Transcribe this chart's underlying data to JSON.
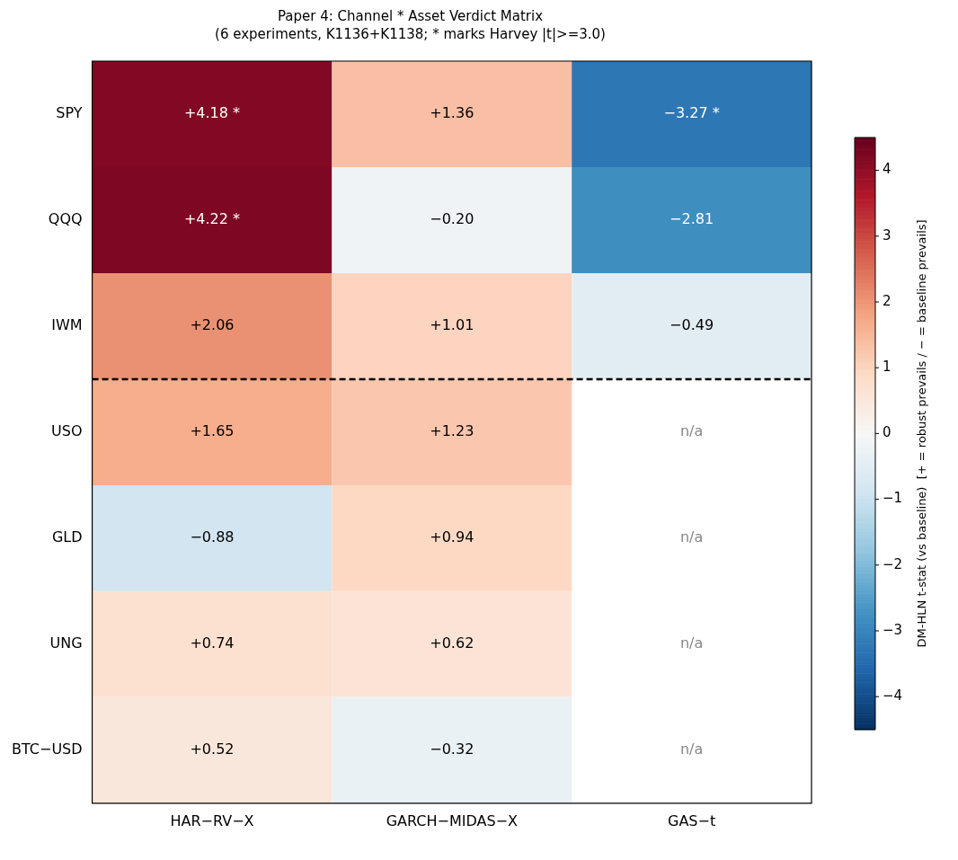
{
  "chart_data": {
    "type": "heatmap",
    "title": "Paper 4: Channel * Asset Verdict Matrix",
    "subtitle": "(6 experiments, K1136+K1138; * marks Harvey |t|>=3.0)",
    "categories": [
      "HAR−RV−X",
      "GARCH−MIDAS−X",
      "GAS−t"
    ],
    "y_categories": [
      "SPY",
      "QQQ",
      "IWM",
      "USO",
      "GLD",
      "UNG",
      "BTC−USD"
    ],
    "cells": [
      [
        4.18,
        1.36,
        -3.27
      ],
      [
        4.22,
        -0.2,
        -2.81
      ],
      [
        2.06,
        1.01,
        -0.49
      ],
      [
        1.65,
        1.23,
        null
      ],
      [
        -0.88,
        0.94,
        null
      ],
      [
        0.74,
        0.62,
        null
      ],
      [
        0.52,
        -0.32,
        null
      ]
    ],
    "cell_labels": [
      [
        "+4.18 *",
        "+1.36",
        "−3.27 *"
      ],
      [
        "+4.22 *",
        "−0.20",
        "−2.81"
      ],
      [
        "+2.06",
        "+1.01",
        "−0.49"
      ],
      [
        "+1.65",
        "+1.23",
        "n/a"
      ],
      [
        "−0.88",
        "+0.94",
        "n/a"
      ],
      [
        "+0.74",
        "+0.62",
        "n/a"
      ],
      [
        "+0.52",
        "−0.32",
        "n/a"
      ]
    ],
    "clim": [
      -4.5,
      4.5
    ],
    "cticks": [
      -4,
      -3,
      -2,
      -1,
      0,
      1,
      2,
      3,
      4
    ],
    "clabel": "DM-HLN t-stat (vs baseline)  [+ = robust prevails / − = baseline prevails]"
  }
}
